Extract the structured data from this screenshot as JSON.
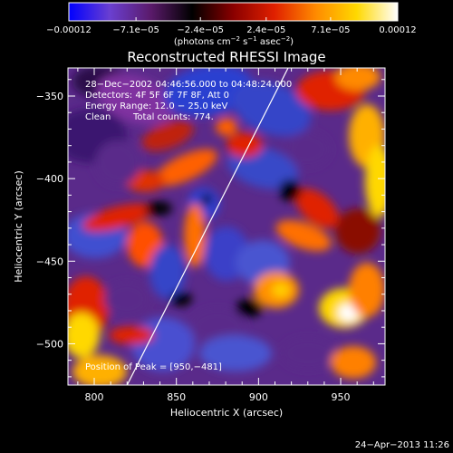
{
  "chart_data": {
    "type": "heatmap",
    "title": "Reconstructed RHESSI Image",
    "xlabel": "Heliocentric X (arcsec)",
    "ylabel": "Heliocentric Y (arcsec)",
    "xlim": [
      784,
      977
    ],
    "ylim": [
      -525,
      -333
    ],
    "x_ticks": [
      {
        "value": 800,
        "label": "800"
      },
      {
        "value": 850,
        "label": "850"
      },
      {
        "value": 900,
        "label": "900"
      },
      {
        "value": 950,
        "label": "950"
      }
    ],
    "y_ticks": [
      {
        "value": -350,
        "label": "−350"
      },
      {
        "value": -400,
        "label": "−400"
      },
      {
        "value": -450,
        "label": "−450"
      },
      {
        "value": -500,
        "label": "−500"
      }
    ],
    "colorbar": {
      "range": [
        -0.00012,
        0.00012
      ],
      "tick_labels": [
        {
          "value": -0.00012,
          "label": "−0.00012"
        },
        {
          "value": -7.1e-05,
          "label": "−7.1e−05"
        },
        {
          "value": -2.4e-05,
          "label": "−2.4e−05"
        },
        {
          "value": 2.4e-05,
          "label": "2.4e−05"
        },
        {
          "value": 7.1e-05,
          "label": "7.1e−05"
        },
        {
          "value": 0.00012,
          "label": "0.00012"
        }
      ],
      "units_label": "(photons cm",
      "units_exp1": "−2",
      "units_mid": " s",
      "units_exp2": "−1",
      "units_end": " asec",
      "units_exp3": "−2",
      "units_close": ")",
      "colors": [
        "#0000ff",
        "#6a3fd0",
        "#5a1a6a",
        "#000000",
        "#8a0000",
        "#e02000",
        "#ff8a00",
        "#ffd800",
        "#ffffff"
      ]
    },
    "annotations": {
      "time_range": "28−Dec−2002 04:46:56.000 to 04:48:24.000",
      "detectors": "Detectors: 4F 5F 6F 7F 8F, Att 0",
      "energy": "Energy Range: 12.0 − 25.0 keV",
      "clean": "Clean",
      "total_counts": "Total counts: 774.",
      "peak": "Position of Peak = [950,−481]"
    },
    "limb_line": [
      [
        820,
        -525
      ],
      [
        918,
        -333
      ]
    ],
    "peak_position": [
      950,
      -481
    ],
    "footer_date": "24−Apr−2013 11:26"
  }
}
